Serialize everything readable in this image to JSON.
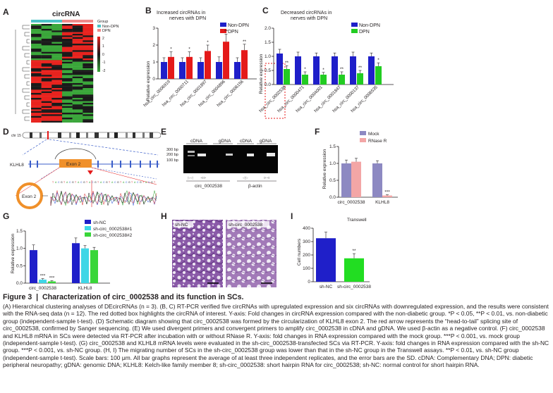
{
  "panel_labels": [
    "A",
    "B",
    "C",
    "D",
    "E",
    "F",
    "G",
    "H",
    "I"
  ],
  "panelA": {
    "title": "circRNA",
    "legend_title": "Group",
    "groups": [
      "Non-DPN",
      "DPN"
    ],
    "colors": {
      "non_dpn": "#4cc3c7",
      "dpn": "#f08a8a",
      "high": "#e8231e",
      "low": "#3aa63a",
      "mid": "#1a1a1a"
    },
    "scale_ticks": [
      "2",
      "1",
      "0",
      "-1",
      "-2"
    ]
  },
  "panelB": {
    "title_line1": "Increased circRNAs in",
    "title_line2": "nerves with DPN",
    "legend": [
      "Non-DPN",
      "DPN"
    ],
    "chart_data": {
      "type": "bar",
      "title": "Increased circRNAs in nerves with DPN",
      "ylabel": "Relative expression",
      "ylim": [
        0,
        3
      ],
      "yticks": [
        "0",
        "1",
        "2",
        "3"
      ],
      "categories": [
        "hsa_circ_0006919",
        "hsa_circ_0000711",
        "hsa_circ_0001897",
        "hsa_circ_0004896",
        "hsa_circ_0006156"
      ],
      "series": [
        {
          "name": "Non-DPN",
          "values": [
            1.0,
            1.0,
            1.0,
            1.0,
            1.0
          ],
          "errors": [
            0.25,
            0.25,
            0.25,
            0.3,
            0.25
          ]
        },
        {
          "name": "DPN",
          "values": [
            1.3,
            1.3,
            1.65,
            2.2,
            1.7
          ],
          "errors": [
            0.3,
            0.3,
            0.35,
            0.45,
            0.35
          ]
        }
      ],
      "significance": [
        "*",
        "*",
        "*",
        "**",
        "**"
      ],
      "colors": {
        "Non-DPN": "#1f1fc9",
        "DPN": "#e41a1a"
      }
    }
  },
  "panelC": {
    "title_line1": "Decreased circRNAs in",
    "title_line2": "nerves with DPN",
    "legend": [
      "Non-DPN",
      "DPN"
    ],
    "chart_data": {
      "type": "bar",
      "title": "Decreased circRNAs in nerves with DPN",
      "ylabel": "Relative expression",
      "ylim": [
        0,
        2.0
      ],
      "yticks": [
        "0.0",
        "0.5",
        "1.0",
        "1.5",
        "2.0"
      ],
      "categories": [
        "hsa_circ_0002538",
        "hsa_circ_0000471",
        "hsa_circ_0004001",
        "hsa_circ_0001847",
        "hsa_circ_0000137",
        "hsa_circ_0006535"
      ],
      "series": [
        {
          "name": "Non-DPN",
          "values": [
            1.1,
            1.0,
            1.0,
            1.0,
            1.0,
            1.0
          ],
          "errors": [
            0.15,
            0.15,
            0.12,
            0.12,
            0.15,
            0.12
          ]
        },
        {
          "name": "DPN",
          "values": [
            0.55,
            0.35,
            0.35,
            0.35,
            0.4,
            0.65
          ],
          "errors": [
            0.12,
            0.1,
            0.08,
            0.1,
            0.1,
            0.12
          ]
        }
      ],
      "significance": [
        "**",
        "*",
        "*",
        "**",
        "**",
        "*"
      ],
      "colors": {
        "Non-DPN": "#1f1fc9",
        "DPN": "#22cc22"
      }
    }
  },
  "panelD": {
    "chr_label": "chr 15",
    "gene": "KLHL8",
    "exon": "Exon 2",
    "circle_label": "Exon 2"
  },
  "panelE": {
    "headers": [
      "cDNA",
      "gDNA",
      "cDNA",
      "gDNA"
    ],
    "ladder": [
      "300 bp",
      "200 bp",
      "100 bp"
    ],
    "group_labels": [
      "circ_0002538",
      "β-actin"
    ],
    "diff_labels": [
      "▷◁",
      "⊲⊳",
      "◁▷",
      "⊳⊲"
    ]
  },
  "panelF": {
    "legend": [
      "Mock",
      "RNase R"
    ],
    "chart_data": {
      "type": "bar",
      "ylabel": "Relative expression",
      "ylim": [
        0,
        1.5
      ],
      "yticks": [
        "0.0",
        "0.5",
        "1.0",
        "1.5"
      ],
      "categories": [
        "circ_0002538",
        "KLHL8"
      ],
      "series": [
        {
          "name": "Mock",
          "values": [
            1.0,
            1.0
          ],
          "errors": [
            0.1,
            0.08
          ]
        },
        {
          "name": "RNase R",
          "values": [
            1.05,
            0.05
          ],
          "errors": [
            0.1,
            0.02
          ]
        }
      ],
      "significance": [
        "",
        "***"
      ],
      "colors": {
        "Mock": "#8d89c2",
        "RNase R": "#f3a6a6"
      }
    }
  },
  "panelG": {
    "legend": [
      "sh-NC",
      "sh-circ_0002538#1",
      "sh-circ_0002538#2"
    ],
    "chart_data": {
      "type": "bar",
      "ylabel": "Relative expression",
      "ylim": [
        0,
        1.5
      ],
      "yticks": [
        "0.0",
        "0.5",
        "1.0",
        "1.5"
      ],
      "categories": [
        "circ_0002538",
        "KLHL8"
      ],
      "series": [
        {
          "name": "sh-NC",
          "values": [
            0.95,
            1.15
          ],
          "errors": [
            0.15,
            0.15
          ]
        },
        {
          "name": "sh-circ_0002538#1",
          "values": [
            0.1,
            1.0
          ],
          "errors": [
            0.03,
            0.08
          ]
        },
        {
          "name": "sh-circ_0002538#2",
          "values": [
            0.05,
            0.95
          ],
          "errors": [
            0.02,
            0.08
          ]
        }
      ],
      "significance": [
        [
          "",
          "***",
          "***"
        ],
        [
          "",
          "",
          ""
        ]
      ],
      "colors": {
        "sh-NC": "#1f1fc9",
        "sh-circ_0002538#1": "#3fd6e6",
        "sh-circ_0002538#2": "#39d639"
      }
    }
  },
  "panelH": {
    "labels": [
      "sh-NC",
      "sh-circ_0002538"
    ]
  },
  "panelI": {
    "chart_data": {
      "type": "bar",
      "title": "Transwell",
      "ylabel": "Cell numbers",
      "ylim": [
        0,
        400
      ],
      "yticks": [
        "0",
        "100",
        "200",
        "300",
        "400"
      ],
      "categories": [
        "sh-NC",
        "sh-circ_0002538"
      ],
      "values": [
        325,
        175
      ],
      "errors": [
        45,
        35
      ],
      "significance": [
        "",
        "**"
      ],
      "colors": [
        "#1f1fc9",
        "#22dd22"
      ]
    }
  },
  "caption": {
    "figure_label": "Figure 3",
    "separator": "|",
    "title": "Characterization of circ_0002538 and its function in SCs.",
    "body": "(A) Hierarchical clustering analyses of DEcircRNAs (n = 3). (B, C) RT-PCR verified five circRNAs with upregulated expression and six circRNAs with downregulated expression, and the results were consistent with the RNA-seq data (n = 12). The red dotted box highlights the circRNA of interest. Y-axis: Fold changes in circRNA expression compared with the non-diabetic group. *P < 0.05, **P < 0.01, vs. non-diabetic group (independent-sample t-test). (D) Schematic diagram showing that circ_0002538 was formed by the circularization of KLHL8 exon 2. The red arrow represents the “head-to-tail” splicing site of circ_0002538, confirmed by Sanger sequencing. (E) We used divergent primers and convergent primers to amplify circ_0002538 in cDNA and gDNA. We used β-actin as a negative control. (F) circ_0002538 and KLHL8 mRNA in SCs were detected via RT-PCR after incubation with or without RNase R. Y-axis: fold changes in RNA expression compared with the mock group. ***P < 0.001, vs. mock group (independent-sample t-test). (G) circ_0002538 and KLHL8 mRNA levels were evaluated in the sh-circ_0002538-transfected SCs via RT-PCR. Y-axis: fold changes in RNA expression compared with the sh-NC group. ***P < 0.001, vs. sh-NC group. (H, I) The migrating number of SCs in the sh-circ_0002538 group was lower than that in the sh-NC group in the Transwell assays. **P < 0.01, vs. sh-NC group (independent-sample t-test). Scale bars: 100 μm. All bar graphs represent the average of at least three independent replicates, and the error bars are the SD. cDNA: Complementary DNA; DPN: diabetic peripheral neuropathy; gDNA: genomic DNA; KLHL8: Kelch-like family member 8; sh-circ_0002538: short hairpin RNA for circ_0002538; sh-NC: normal control for short hairpin RNA."
  }
}
